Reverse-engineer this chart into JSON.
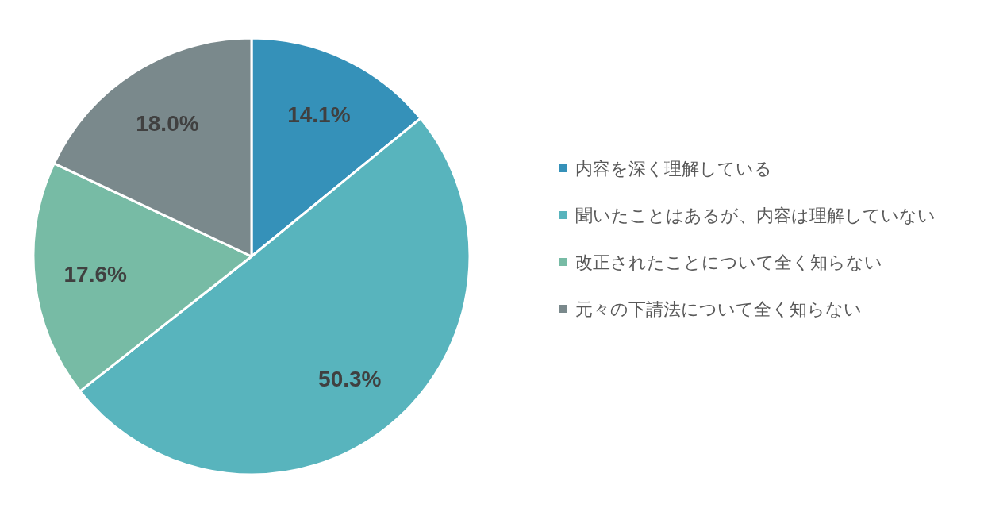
{
  "chart_data": {
    "type": "pie",
    "categories": [
      "内容を深く理解している",
      "聞いたことはあるが、内容は理解していない",
      "改正されたことについて全く知らない",
      "元々の下請法について全く知らない"
    ],
    "values": [
      14.1,
      50.3,
      17.6,
      18.0
    ],
    "colors": [
      "#3591b9",
      "#58b4bd",
      "#77bba5",
      "#7a898c"
    ],
    "value_labels": [
      "14.1%",
      "50.3%",
      "17.6%",
      "18.0%"
    ],
    "legend": "right"
  }
}
